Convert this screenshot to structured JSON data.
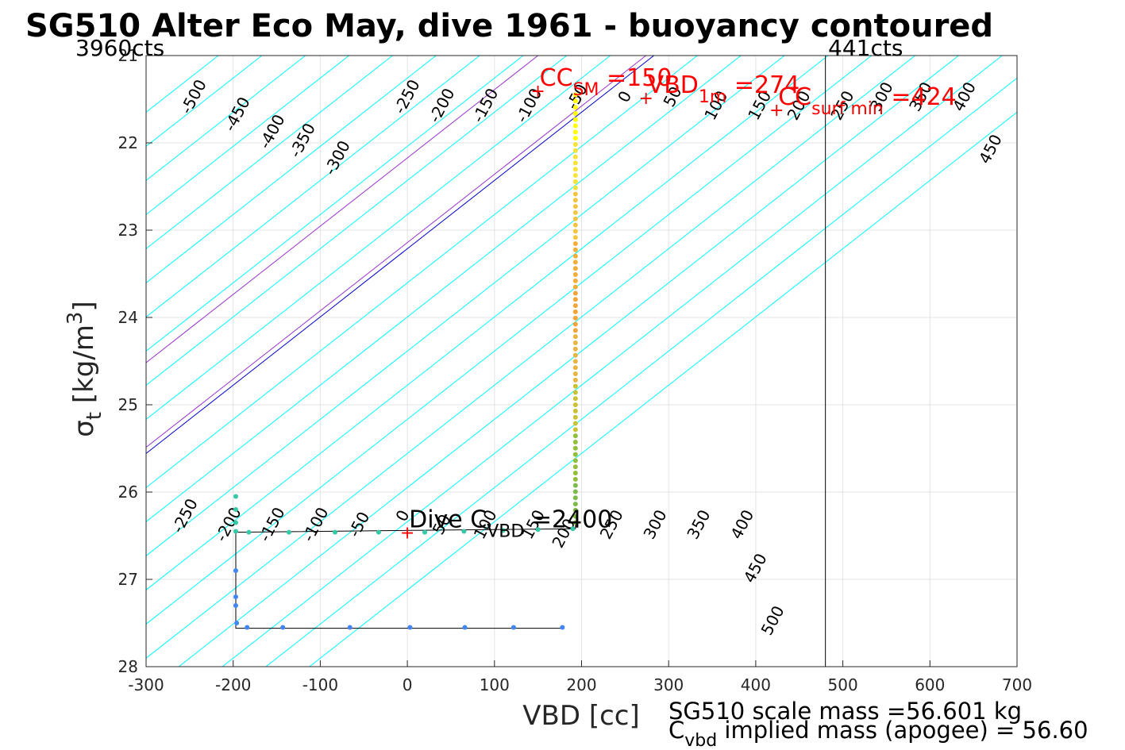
{
  "chart_data": {
    "type": "scatter",
    "title": "SG510 Alter Eco May, dive 1961 - buoyancy contoured",
    "xlabel": "VBD [cc]",
    "ylabel": {
      "sigma": "σ",
      "sub": "t",
      "text": " [kg/m",
      "sup": "3",
      "close": "]"
    },
    "xlim": [
      -300,
      700
    ],
    "ylim": [
      21,
      28
    ],
    "y_reversed": true,
    "grid": true,
    "xticks": [
      "-300",
      "-200",
      "-100",
      "0",
      "100",
      "200",
      "300",
      "400",
      "500",
      "600",
      "700"
    ],
    "yticks": [
      "21",
      "22",
      "23",
      "24",
      "25",
      "26",
      "27",
      "28"
    ],
    "top_labels": {
      "left": "3960cts",
      "right": "441cts"
    },
    "vertical_line_x": 480,
    "buoyancy_contours": {
      "levels": [
        -500,
        -450,
        -400,
        -350,
        -300,
        -250,
        -200,
        -150,
        -100,
        -50,
        0,
        50,
        100,
        150,
        200,
        250,
        300,
        350,
        400,
        450,
        500
      ],
      "base_vbd_at_top": 283,
      "slope_cc_per_kgm3": -53.3,
      "color_default": "#00ffff",
      "color_zero": "#0000cc",
      "color_ref": "#9932cc",
      "ref_vbd_at_top": [
        150,
        274
      ],
      "labels_upper": [
        {
          "text": "-500",
          "x": -240,
          "y": 21.5
        },
        {
          "text": "-450",
          "x": -190,
          "y": 21.7
        },
        {
          "text": "-400",
          "x": -150,
          "y": 21.9
        },
        {
          "text": "-350",
          "x": -115,
          "y": 22.0
        },
        {
          "text": "-300",
          "x": -75,
          "y": 22.2
        },
        {
          "text": "-250",
          "x": 5,
          "y": 21.5
        },
        {
          "text": "-200",
          "x": 45,
          "y": 21.6
        },
        {
          "text": "-150",
          "x": 95,
          "y": 21.6
        },
        {
          "text": "-100",
          "x": 145,
          "y": 21.6
        },
        {
          "text": "-50",
          "x": 200,
          "y": 21.5
        },
        {
          "text": "0",
          "x": 255,
          "y": 21.5
        },
        {
          "text": "50",
          "x": 310,
          "y": 21.5
        },
        {
          "text": "100",
          "x": 360,
          "y": 21.6
        },
        {
          "text": "150",
          "x": 410,
          "y": 21.6
        },
        {
          "text": "200",
          "x": 455,
          "y": 21.6
        },
        {
          "text": "250",
          "x": 505,
          "y": 21.6
        },
        {
          "text": "300",
          "x": 550,
          "y": 21.5
        },
        {
          "text": "350",
          "x": 595,
          "y": 21.5
        },
        {
          "text": "400",
          "x": 645,
          "y": 21.5
        },
        {
          "text": "450",
          "x": 675,
          "y": 22.1
        }
      ],
      "labels_lower": [
        {
          "text": "-250",
          "x": -250,
          "y": 26.3
        },
        {
          "text": "-200",
          "x": -200,
          "y": 26.4
        },
        {
          "text": "-150",
          "x": -150,
          "y": 26.4
        },
        {
          "text": "-100",
          "x": -100,
          "y": 26.4
        },
        {
          "text": "-50",
          "x": -50,
          "y": 26.4
        },
        {
          "text": "0",
          "x": 0,
          "y": 26.3
        },
        {
          "text": "50",
          "x": 45,
          "y": 26.4
        },
        {
          "text": "100",
          "x": 95,
          "y": 26.4
        },
        {
          "text": "150",
          "x": 150,
          "y": 26.4
        },
        {
          "text": "200",
          "x": 185,
          "y": 26.5
        },
        {
          "text": "250",
          "x": 240,
          "y": 26.4
        },
        {
          "text": "300",
          "x": 290,
          "y": 26.4
        },
        {
          "text": "350",
          "x": 340,
          "y": 26.4
        },
        {
          "text": "400",
          "x": 390,
          "y": 26.4
        },
        {
          "text": "450",
          "x": 405,
          "y": 26.9
        },
        {
          "text": "500",
          "x": 425,
          "y": 27.5
        }
      ]
    },
    "profile_vertical": {
      "vbd": 193,
      "sigma_from": 21.45,
      "sigma_to": 26.35,
      "colors_by_depth": [
        "#ffff00",
        "#f7e23a",
        "#f5c542",
        "#f3ae3a",
        "#f3a53b",
        "#e8b544",
        "#c9c235",
        "#8fbf3b",
        "#7cbb48"
      ]
    },
    "profile_pump": {
      "points": [
        [
          -197,
          26.05
        ],
        [
          -197,
          26.2
        ],
        [
          -197,
          26.35
        ],
        [
          -197,
          26.45
        ],
        [
          -182,
          26.46
        ],
        [
          -136,
          26.46
        ],
        [
          -83,
          26.46
        ],
        [
          -33,
          26.46
        ],
        [
          20,
          26.46
        ],
        [
          65,
          26.45
        ],
        [
          110,
          26.44
        ],
        [
          150,
          26.43
        ],
        [
          190,
          26.42
        ]
      ],
      "color": "#35c9a7"
    },
    "profile_bottom": {
      "points": [
        [
          -197,
          26.9
        ],
        [
          -197,
          27.2
        ],
        [
          -197,
          27.3
        ],
        [
          -196,
          27.5
        ],
        [
          -184,
          27.55
        ],
        [
          -143,
          27.55
        ],
        [
          -66,
          27.55
        ],
        [
          3,
          27.55
        ],
        [
          66,
          27.55
        ],
        [
          122,
          27.55
        ],
        [
          178,
          27.55
        ]
      ],
      "color": "#4285f4"
    },
    "outline_paths": [
      [
        [
          -197,
          26.45
        ],
        [
          -197,
          27.56
        ],
        [
          178,
          27.56
        ]
      ],
      [
        [
          -197,
          26.46
        ],
        [
          193,
          26.42
        ],
        [
          193,
          26.35
        ]
      ]
    ],
    "annotations": [
      {
        "main": "CC",
        "sub": "SM",
        "rest": " =150",
        "x": 150,
        "y": 21.4,
        "color": "#ff0000"
      },
      {
        "main": "VBD",
        "sub": "1m",
        "rest": " =274",
        "x": 274,
        "y": 21.48,
        "color": "#ff0000"
      },
      {
        "main": "CC",
        "sub": "surf min",
        "rest": " =424",
        "x": 424,
        "y": 21.62,
        "color": "#ff0000"
      },
      {
        "main": "Dive C",
        "sub": "VBD",
        "rest": " =2400",
        "x": 0,
        "y": 26.46,
        "color": "#000000"
      }
    ],
    "footer": {
      "line1": "SG510 scale mass =56.601 kg",
      "line2_main": "C",
      "line2_sub": "vbd",
      "line2_rest": " implied mass (apogee) = 56.60"
    }
  }
}
